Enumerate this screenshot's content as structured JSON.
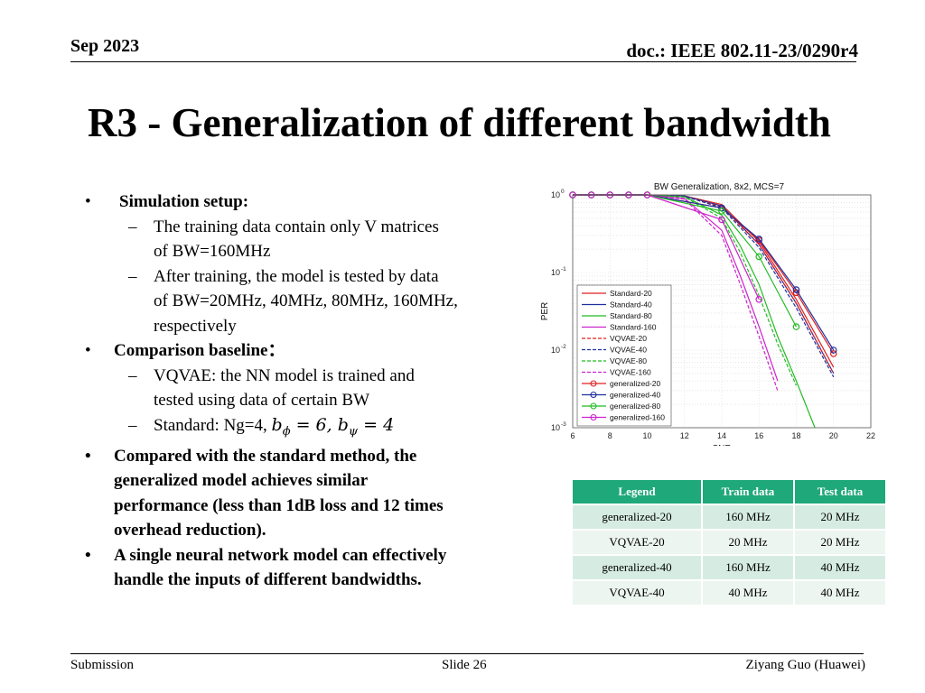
{
  "header": {
    "date": "Sep 2023",
    "doc": "doc.: IEEE 802.11-23/0290r4"
  },
  "title": "R3 - Generalization of different bandwidth",
  "bullets": {
    "setup_label": "Simulation setup:",
    "setup_items": [
      [
        "The training data contain only V matrices",
        "of BW=160MHz"
      ],
      [
        "After training, the model is tested by data",
        "of BW=20MHz, 40MHz, 80MHz, 160MHz,",
        "respectively"
      ]
    ],
    "baseline_label": "Comparison baseline：",
    "baseline_items": [
      [
        "VQVAE: the NN model is trained and",
        "tested using data of certain BW"
      ]
    ],
    "standard_prefix": "Standard: Ng=4, ",
    "standard_b": "b",
    "standard_phi_sub": "ϕ",
    "standard_phi_val": " = 6, ",
    "standard_psi_sub": "ψ",
    "standard_psi_val": " = 4",
    "conclusion_1": [
      "Compared with the standard method, the",
      "generalized model achieves similar",
      "performance (less than 1dB loss and 12 times",
      "overhead reduction)."
    ],
    "conclusion_2": [
      "A single neural network model can effectively",
      "handle the inputs of different bandwidths."
    ]
  },
  "chart_data": {
    "type": "line",
    "title": "BW Generalization, 8x2, MCS=7",
    "xlabel": "SNR",
    "ylabel": "PER",
    "xlim": [
      6,
      22
    ],
    "ylim": [
      0.001,
      1
    ],
    "yscale": "log",
    "grid": true,
    "xticks": [
      "6",
      "8",
      "10",
      "12",
      "14",
      "16",
      "18",
      "20",
      "22"
    ],
    "yticks": [
      "10",
      "10",
      "10",
      "10"
    ],
    "ytick_exp": [
      "0",
      "-1",
      "-2",
      "-3"
    ],
    "legend_position": "lower-left",
    "series": [
      {
        "name": "Standard-20",
        "color": "#e02020",
        "dash": "solid",
        "marker": "none",
        "x": [
          6,
          10,
          12,
          14,
          16,
          18,
          20
        ],
        "y": [
          1,
          1,
          0.97,
          0.75,
          0.25,
          0.045,
          0.006
        ]
      },
      {
        "name": "Standard-40",
        "color": "#1f2f9f",
        "dash": "solid",
        "marker": "none",
        "x": [
          6,
          10,
          12,
          14,
          16,
          18,
          20
        ],
        "y": [
          1,
          1,
          0.97,
          0.72,
          0.23,
          0.04,
          0.005
        ]
      },
      {
        "name": "Standard-80",
        "color": "#22bb22",
        "dash": "solid",
        "marker": "none",
        "x": [
          6,
          10,
          12,
          14,
          15,
          16,
          17,
          18,
          19
        ],
        "y": [
          1,
          1,
          0.95,
          0.55,
          0.22,
          0.07,
          0.015,
          0.004,
          0.001
        ]
      },
      {
        "name": "Standard-160",
        "color": "#cc22cc",
        "dash": "solid",
        "marker": "none",
        "x": [
          6,
          10,
          12,
          14,
          15,
          16,
          17
        ],
        "y": [
          1,
          1,
          0.9,
          0.35,
          0.09,
          0.02,
          0.004
        ]
      },
      {
        "name": "VQVAE-20",
        "color": "#e02020",
        "dash": "dash",
        "marker": "none",
        "x": [
          6,
          10,
          12,
          14,
          16,
          18,
          20
        ],
        "y": [
          1,
          1,
          0.96,
          0.7,
          0.23,
          0.04,
          0.005
        ]
      },
      {
        "name": "VQVAE-40",
        "color": "#1f2f9f",
        "dash": "dash",
        "marker": "none",
        "x": [
          6,
          10,
          12,
          14,
          16,
          18,
          20
        ],
        "y": [
          1,
          1,
          0.96,
          0.68,
          0.21,
          0.035,
          0.0045
        ]
      },
      {
        "name": "VQVAE-80",
        "color": "#22bb22",
        "dash": "dash",
        "marker": "none",
        "x": [
          6,
          10,
          12,
          14,
          15,
          16,
          17,
          18
        ],
        "y": [
          1,
          1,
          0.94,
          0.5,
          0.18,
          0.05,
          0.012,
          0.0035
        ]
      },
      {
        "name": "VQVAE-160",
        "color": "#cc22cc",
        "dash": "dash",
        "marker": "none",
        "x": [
          6,
          10,
          12,
          14,
          15,
          16,
          17
        ],
        "y": [
          1,
          1,
          0.88,
          0.3,
          0.07,
          0.015,
          0.003
        ]
      },
      {
        "name": "generalized-20",
        "color": "#e02020",
        "dash": "solid",
        "marker": "circle",
        "x": [
          6,
          7,
          8,
          9,
          10,
          14,
          16,
          18,
          20
        ],
        "y": [
          1,
          1,
          1,
          1,
          1,
          0.68,
          0.26,
          0.055,
          0.009
        ]
      },
      {
        "name": "generalized-40",
        "color": "#1f2f9f",
        "dash": "solid",
        "marker": "circle",
        "x": [
          6,
          7,
          8,
          9,
          10,
          14,
          16,
          18,
          20
        ],
        "y": [
          1,
          1,
          1,
          1,
          1,
          0.68,
          0.27,
          0.06,
          0.01
        ]
      },
      {
        "name": "generalized-80",
        "color": "#22bb22",
        "dash": "solid",
        "marker": "circle",
        "x": [
          6,
          7,
          8,
          9,
          10,
          14,
          16,
          18
        ],
        "y": [
          1,
          1,
          1,
          1,
          1,
          0.62,
          0.16,
          0.02
        ]
      },
      {
        "name": "generalized-160",
        "color": "#cc22cc",
        "dash": "solid",
        "marker": "circle",
        "x": [
          6,
          7,
          8,
          9,
          10,
          14,
          16
        ],
        "y": [
          1,
          1,
          1,
          1,
          1,
          0.48,
          0.045
        ]
      }
    ]
  },
  "table": {
    "headers": [
      "Legend",
      "Train data",
      "Test data"
    ],
    "rows": [
      [
        "generalized-20",
        "160 MHz",
        "20 MHz"
      ],
      [
        "VQVAE-20",
        "20 MHz",
        "20 MHz"
      ],
      [
        "generalized-40",
        "160 MHz",
        "40 MHz"
      ],
      [
        "VQVAE-40",
        "40 MHz",
        "40 MHz"
      ]
    ],
    "header_color": "#1fa87a"
  },
  "footer": {
    "left": "Submission",
    "center": "Slide 26",
    "right": "Ziyang Guo (Huawei)"
  }
}
